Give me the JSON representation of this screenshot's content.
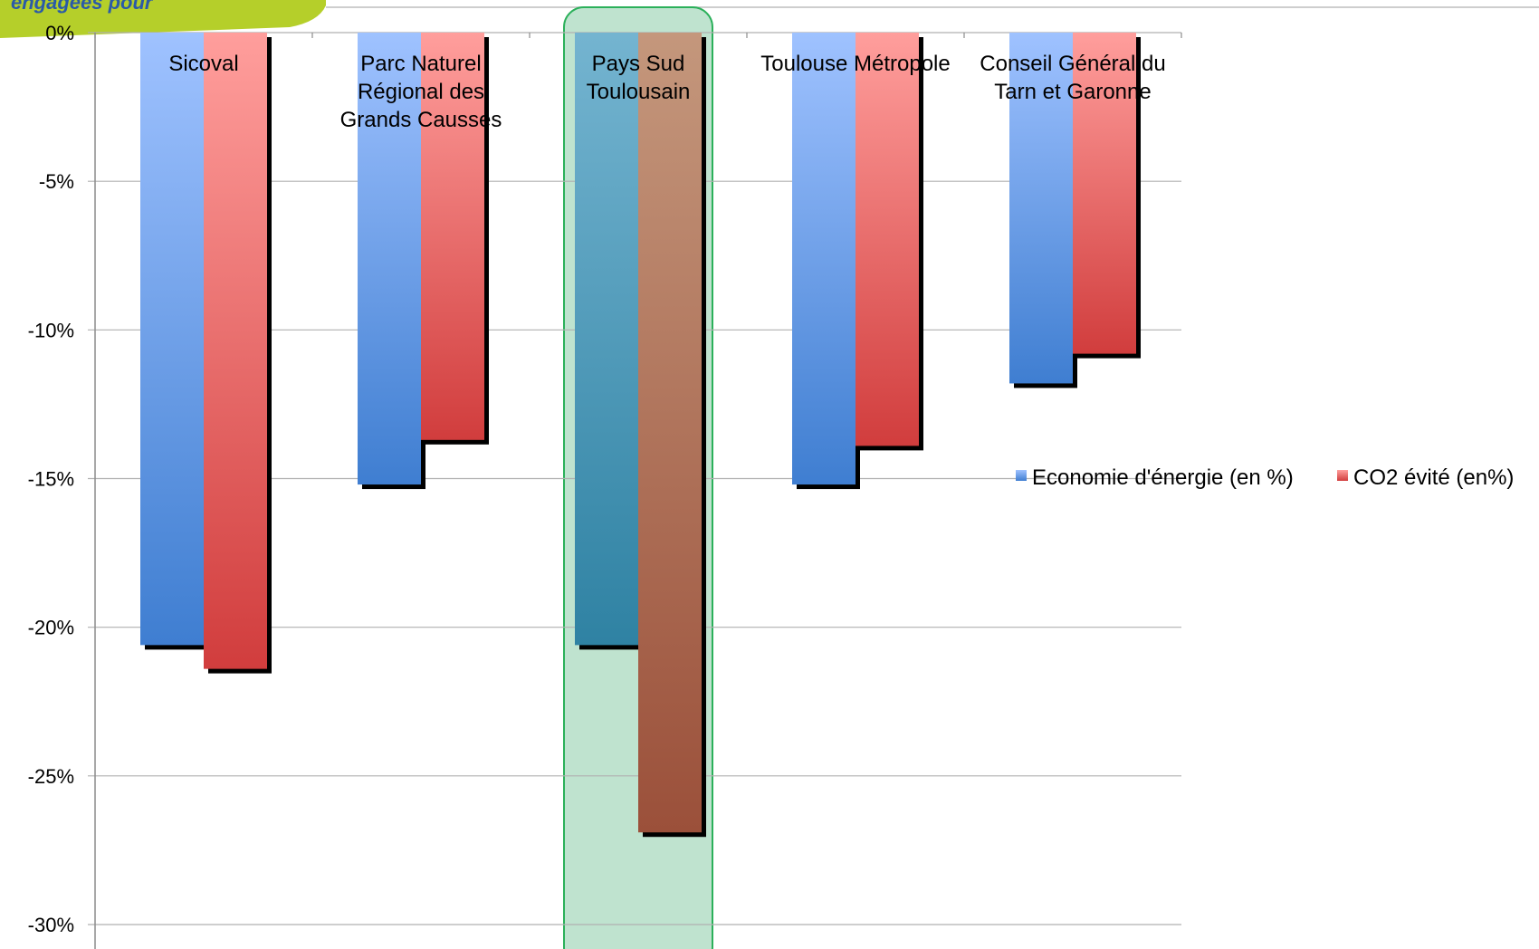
{
  "banner": {
    "text": "engagées pour",
    "color": "#b5cf2a"
  },
  "highlight": {
    "category_index": 2,
    "fill": "#bfe3cf",
    "stroke": "#2bb05a"
  },
  "chart_data": {
    "type": "bar",
    "categories": [
      [
        "Sicoval"
      ],
      [
        "Parc Naturel",
        "Régional des",
        "Grands Causses"
      ],
      [
        "Pays Sud",
        "Toulousain"
      ],
      [
        "Toulouse Métropole"
      ],
      [
        "Conseil Général du",
        "Tarn et Garonne"
      ]
    ],
    "series": [
      {
        "name": "Economie d'énergie (en %)",
        "values": [
          -20.6,
          -15.2,
          -20.6,
          -15.2,
          -11.8
        ],
        "color_top": "#9fc2ff",
        "color_bottom": "#3f7ed1",
        "highlight_top": "#74b4d0",
        "highlight_bottom": "#2f82a3"
      },
      {
        "name": "CO2 évité (en%)",
        "values": [
          -21.4,
          -13.7,
          -26.9,
          -13.9,
          -10.8
        ],
        "color_top": "#ff9e9c",
        "color_bottom": "#d13d3d",
        "highlight_top": "#c4977c",
        "highlight_bottom": "#9b503a"
      }
    ],
    "ylim": [
      -30,
      0
    ],
    "yticks": [
      0,
      -5,
      -10,
      -15,
      -20,
      -25,
      -30
    ],
    "ytick_labels": [
      "0%",
      "-5%",
      "-10%",
      "-15%",
      "-20%",
      "-25%",
      "-30%"
    ],
    "grid": true,
    "legend_position": "right"
  }
}
